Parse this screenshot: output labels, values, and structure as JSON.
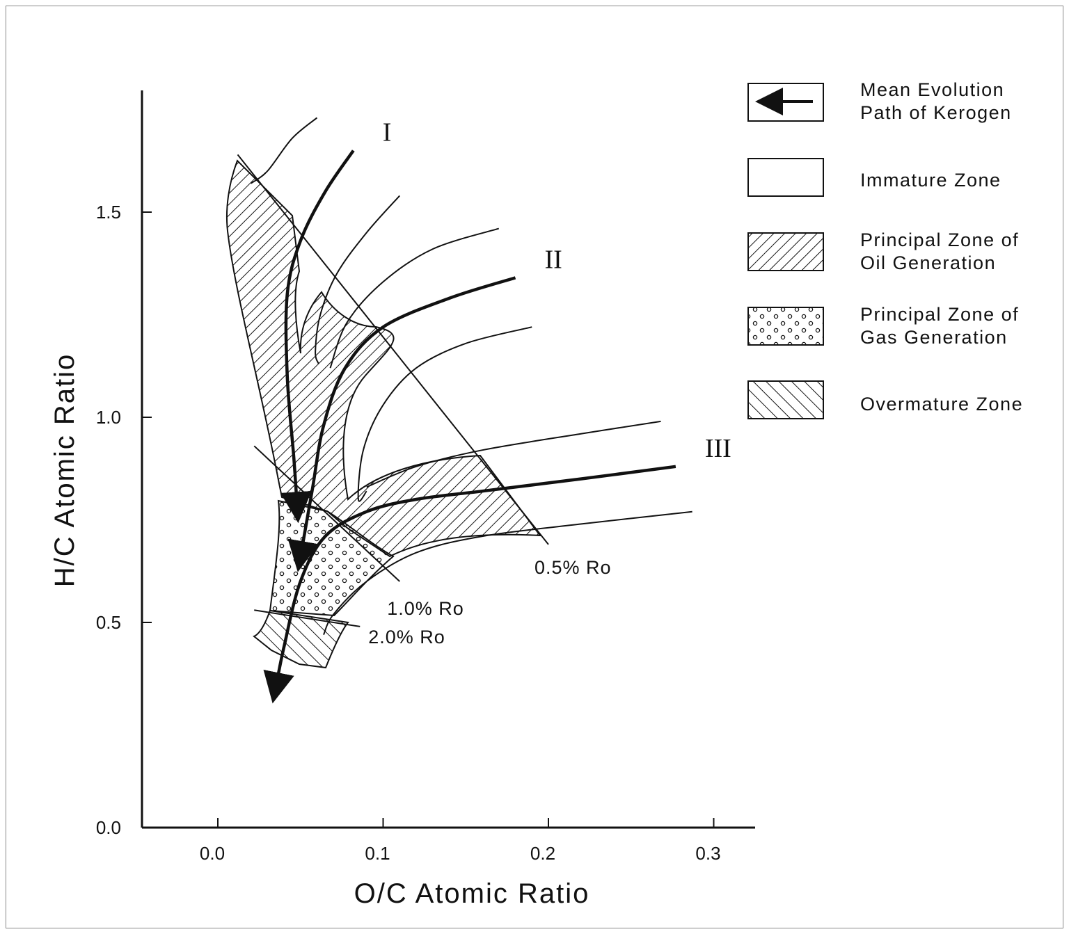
{
  "chart_data": {
    "type": "line",
    "title": "",
    "xlabel": "O/C Atomic Ratio",
    "ylabel": "H/C Atomic Ratio",
    "xlim": [
      -0.045,
      0.32
    ],
    "ylim": [
      0.0,
      1.8
    ],
    "x_ticks": [
      "0.0",
      "0.1",
      "0.2",
      "0.3"
    ],
    "x_tick_values": [
      0.0,
      0.1,
      0.2,
      0.3
    ],
    "y_ticks": [
      "0.0",
      "0.5",
      "1.0",
      "1.5"
    ],
    "y_tick_values": [
      0.0,
      0.5,
      1.0,
      1.5
    ],
    "kerogen_types": [
      {
        "label": "I",
        "path": [
          [
            0.082,
            1.65
          ],
          [
            0.065,
            1.55
          ],
          [
            0.05,
            1.43
          ],
          [
            0.042,
            1.3
          ],
          [
            0.042,
            1.1
          ],
          [
            0.046,
            0.9
          ],
          [
            0.048,
            0.78
          ]
        ]
      },
      {
        "label": "II",
        "path": [
          [
            0.18,
            1.34
          ],
          [
            0.14,
            1.29
          ],
          [
            0.1,
            1.22
          ],
          [
            0.077,
            1.12
          ],
          [
            0.064,
            0.98
          ],
          [
            0.057,
            0.82
          ],
          [
            0.05,
            0.66
          ]
        ]
      },
      {
        "label": "III",
        "path": [
          [
            0.277,
            0.88
          ],
          [
            0.22,
            0.85
          ],
          [
            0.16,
            0.82
          ],
          [
            0.12,
            0.8
          ],
          [
            0.09,
            0.77
          ],
          [
            0.065,
            0.71
          ],
          [
            0.05,
            0.6
          ],
          [
            0.04,
            0.44
          ],
          [
            0.035,
            0.34
          ]
        ]
      }
    ],
    "maturity_lines": [
      {
        "label": "0.5% Ro",
        "points": [
          [
            0.012,
            1.64
          ],
          [
            0.2,
            0.69
          ]
        ]
      },
      {
        "label": "1.0% Ro",
        "points": [
          [
            0.022,
            0.93
          ],
          [
            0.11,
            0.6
          ]
        ]
      },
      {
        "label": "2.0% Ro",
        "points": [
          [
            0.022,
            0.53
          ],
          [
            0.086,
            0.49
          ]
        ]
      }
    ],
    "legend": [
      {
        "label": "Mean Evolution Path of Kerogen",
        "symbol": "arrow"
      },
      {
        "label": "Immature Zone",
        "symbol": "blank"
      },
      {
        "label": "Principal Zone of Oil Generation",
        "symbol": "hatch-forward"
      },
      {
        "label": "Principal Zone of Gas Generation",
        "symbol": "dots"
      },
      {
        "label": "Overmature Zone",
        "symbol": "hatch-back"
      }
    ],
    "legend_position": "right"
  },
  "legend_lines": [
    [
      "Mean Evolution",
      "Path of Kerogen"
    ],
    [
      "Immature Zone"
    ],
    [
      "Principal Zone of",
      "Oil Generation"
    ],
    [
      "Principal Zone of",
      "Gas Generation"
    ],
    [
      "Overmature Zone"
    ]
  ]
}
